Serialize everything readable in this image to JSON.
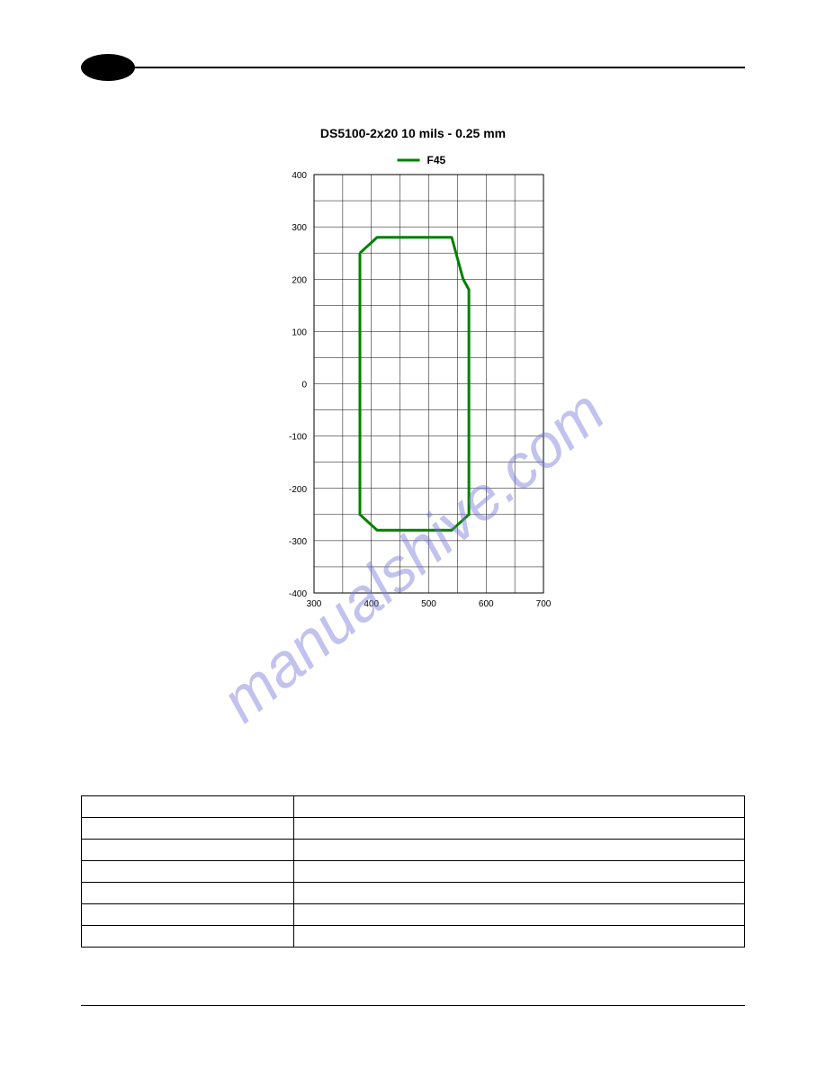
{
  "watermark_text": "manualshive.com",
  "chart": {
    "title": "DS5100-2x20    10 mils - 0.25 mm",
    "legend_label": "F45",
    "legend_color": "#008000",
    "xlim": [
      300,
      700
    ],
    "ylim": [
      -400,
      400
    ],
    "x_ticks": [
      300,
      400,
      500,
      600,
      700
    ],
    "y_ticks": [
      -400,
      -300,
      -200,
      -100,
      0,
      100,
      200,
      300,
      400
    ],
    "x_minor_step": 50,
    "y_minor_step": 50,
    "grid_color": "#000000",
    "background_color": "#ffffff",
    "tick_fontsize": 10,
    "tick_color": "#000000",
    "line_width": 3,
    "line_color": "#008000",
    "polygon_points": [
      [
        380,
        250
      ],
      [
        380,
        -250
      ],
      [
        410,
        -280
      ],
      [
        540,
        -280
      ],
      [
        570,
        -250
      ],
      [
        570,
        180
      ],
      [
        560,
        200
      ],
      [
        540,
        280
      ],
      [
        410,
        280
      ],
      [
        380,
        250
      ]
    ]
  },
  "table": {
    "rows_2col": [
      [
        "",
        ""
      ],
      [
        "",
        ""
      ],
      [
        "",
        ""
      ],
      [
        "",
        ""
      ],
      [
        "",
        ""
      ],
      [
        "",
        ""
      ]
    ],
    "rows_full": [
      [
        "",
        ""
      ]
    ]
  }
}
